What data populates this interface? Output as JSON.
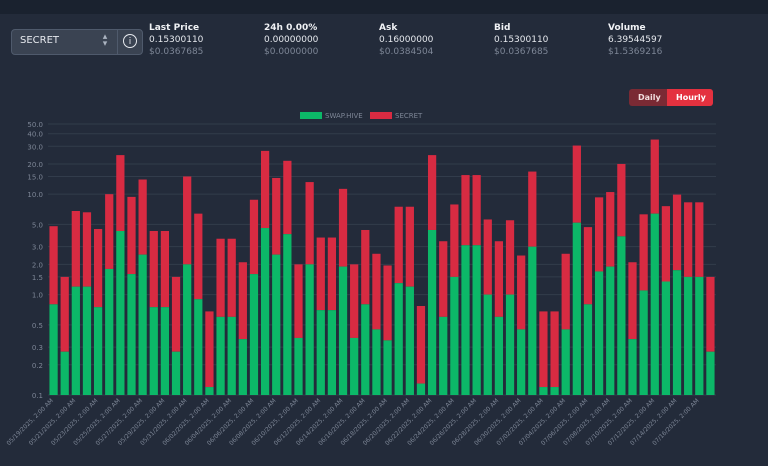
{
  "market": {
    "selected": "SECRET"
  },
  "stats": [
    {
      "label": "Last Price",
      "value": "0.15300110",
      "usd": "$0.0367685"
    },
    {
      "label": "24h 0.00%",
      "value": "0.00000000",
      "usd": "$0.0000000"
    },
    {
      "label": "Ask",
      "value": "0.16000000",
      "usd": "$0.0384504"
    },
    {
      "label": "Bid",
      "value": "0.15300110",
      "usd": "$0.0367685"
    },
    {
      "label": "Volume",
      "value": "6.39544597",
      "usd": "$1.5369216"
    }
  ],
  "toggle": {
    "daily": "Daily",
    "hourly": "Hourly",
    "active": "Hourly"
  },
  "colors": {
    "swap_hive": "#0cb868",
    "secret": "#d82b42",
    "grid": "#323c4b",
    "text": "#7d8696"
  },
  "chart_data": {
    "type": "bar",
    "stacked": true,
    "yscale": "log",
    "ylim": [
      0.1,
      50
    ],
    "yticks": [
      0.1,
      0.2,
      0.3,
      0.5,
      1.0,
      1.5,
      2.0,
      3.0,
      5.0,
      10.0,
      15.0,
      20.0,
      30.0,
      40.0,
      50.0
    ],
    "ytick_labels": [
      "0.1",
      "0.2",
      "0.3",
      "0.5",
      "1.0",
      "1.5",
      "2.0",
      "3.0",
      "5.0",
      "10.0",
      "15.0",
      "20.0",
      "30.0",
      "40.0",
      "50.0"
    ],
    "grid": true,
    "legend": "top-center",
    "xtick_labels": [
      "05/19/2025, 2:00 AM",
      "05/21/2025, 2:00 AM",
      "05/23/2025, 2:00 AM",
      "05/25/2025, 2:00 AM",
      "05/27/2025, 2:00 AM",
      "05/29/2025, 2:00 AM",
      "05/31/2025, 2:00 AM",
      "06/02/2025, 2:00 AM",
      "06/04/2025, 2:00 AM",
      "06/06/2025, 2:00 AM",
      "06/08/2025, 2:00 AM",
      "06/10/2025, 2:00 AM",
      "06/12/2025, 2:00 AM",
      "06/14/2025, 2:00 AM",
      "06/16/2025, 2:00 AM",
      "06/18/2025, 2:00 AM",
      "06/20/2025, 2:00 AM",
      "06/22/2025, 2:00 AM",
      "06/24/2025, 2:00 AM",
      "06/26/2025, 2:00 AM",
      "06/28/2025, 2:00 AM",
      "06/30/2025, 2:00 AM",
      "07/02/2025, 2:00 AM",
      "07/04/2025, 2:00 AM",
      "07/06/2025, 2:00 AM",
      "07/08/2025, 2:00 AM",
      "07/10/2025, 2:00 AM",
      "07/12/2025, 2:00 AM",
      "07/14/2025, 2:00 AM",
      "07/16/2025, 2:00 AM"
    ],
    "series": [
      {
        "name": "SWAP.HIVE",
        "values": [
          0.8,
          0.27,
          1.2,
          1.2,
          0.75,
          1.8,
          4.3,
          1.6,
          2.5,
          0.75,
          0.75,
          0.27,
          2.0,
          0.9,
          0.12,
          0.6,
          0.6,
          0.36,
          1.6,
          4.6,
          2.5,
          4.0,
          0.37,
          2.0,
          0.7,
          0.7,
          1.9,
          0.37,
          0.8,
          0.45,
          0.35,
          1.3,
          1.2,
          0.13,
          4.4,
          0.6,
          1.5,
          3.1,
          3.1,
          1.0,
          0.6,
          1.0,
          0.45,
          3.0,
          0.12,
          0.12,
          0.45,
          5.2,
          0.8,
          1.7,
          1.9,
          3.8,
          0.36,
          1.1,
          6.4,
          1.35,
          1.75,
          1.5,
          1.5,
          0.27
        ]
      },
      {
        "name": "SECRET",
        "values": [
          4.8,
          1.5,
          6.8,
          6.6,
          4.5,
          10.0,
          24.5,
          9.4,
          14.0,
          4.3,
          4.3,
          1.5,
          15.0,
          6.4,
          0.68,
          3.6,
          3.6,
          2.1,
          8.8,
          27.0,
          14.5,
          21.5,
          2.0,
          13.2,
          3.7,
          3.7,
          11.3,
          2.0,
          4.4,
          2.55,
          1.95,
          7.5,
          7.5,
          0.77,
          24.5,
          3.4,
          7.9,
          15.5,
          15.5,
          5.6,
          3.4,
          5.5,
          2.45,
          16.8,
          0.68,
          0.68,
          2.55,
          30.5,
          4.7,
          9.3,
          10.5,
          20.0,
          2.1,
          6.3,
          35.0,
          7.6,
          9.9,
          8.3,
          8.3,
          1.5
        ]
      }
    ]
  }
}
